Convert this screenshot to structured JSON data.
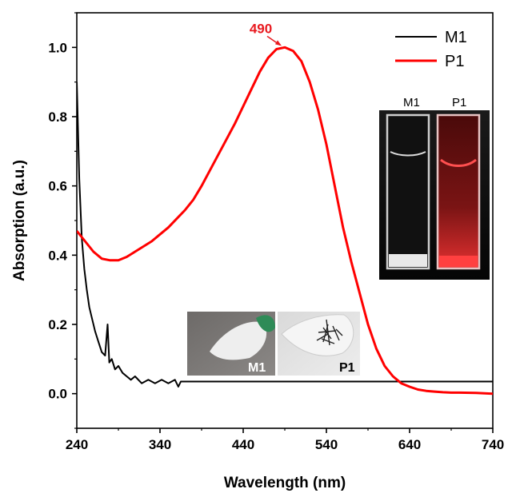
{
  "chart_data": {
    "type": "line",
    "xlabel": "Wavelength (nm)",
    "ylabel": "Absorption (a.u.)",
    "xlim": [
      240,
      740
    ],
    "ylim": [
      -0.1,
      1.1
    ],
    "x_ticks": [
      240,
      340,
      440,
      540,
      640,
      740
    ],
    "y_ticks": [
      0.0,
      0.2,
      0.4,
      0.6,
      0.8,
      1.0
    ],
    "legend_position": "top-right",
    "series": [
      {
        "name": "M1",
        "color": "#000000",
        "x": [
          240,
          243,
          246,
          249,
          252,
          255,
          258,
          262,
          266,
          270,
          274,
          277,
          279,
          282,
          286,
          290,
          295,
          300,
          305,
          310,
          318,
          326,
          334,
          342,
          350,
          358,
          362,
          365,
          370,
          400,
          450,
          500,
          550,
          600,
          650,
          700,
          740
        ],
        "y": [
          0.9,
          0.62,
          0.45,
          0.36,
          0.3,
          0.25,
          0.22,
          0.18,
          0.15,
          0.12,
          0.11,
          0.2,
          0.09,
          0.1,
          0.07,
          0.08,
          0.06,
          0.05,
          0.04,
          0.05,
          0.03,
          0.04,
          0.03,
          0.04,
          0.03,
          0.04,
          0.02,
          0.035,
          0.035,
          0.035,
          0.035,
          0.035,
          0.035,
          0.035,
          0.035,
          0.035,
          0.035
        ]
      },
      {
        "name": "P1",
        "color": "#ff0000",
        "x": [
          240,
          250,
          260,
          270,
          280,
          290,
          300,
          310,
          320,
          330,
          340,
          350,
          360,
          370,
          380,
          390,
          400,
          410,
          420,
          430,
          440,
          450,
          460,
          470,
          480,
          490,
          500,
          510,
          520,
          530,
          540,
          550,
          560,
          570,
          580,
          590,
          600,
          610,
          620,
          630,
          640,
          650,
          660,
          670,
          680,
          690,
          700,
          720,
          740
        ],
        "y": [
          0.47,
          0.44,
          0.41,
          0.39,
          0.385,
          0.385,
          0.395,
          0.41,
          0.425,
          0.44,
          0.46,
          0.48,
          0.505,
          0.53,
          0.56,
          0.6,
          0.645,
          0.69,
          0.735,
          0.78,
          0.83,
          0.88,
          0.93,
          0.97,
          0.995,
          1.0,
          0.99,
          0.96,
          0.9,
          0.82,
          0.72,
          0.6,
          0.48,
          0.38,
          0.29,
          0.2,
          0.13,
          0.08,
          0.05,
          0.03,
          0.02,
          0.012,
          0.008,
          0.006,
          0.004,
          0.003,
          0.003,
          0.002,
          0.0
        ]
      }
    ],
    "annotations": [
      {
        "text": "490",
        "x": 490,
        "y": 1.0,
        "color": "#e8191f"
      }
    ]
  },
  "inset_images": {
    "cuvettes": {
      "label_left": "M1",
      "label_right": "P1"
    },
    "photo_m1": {
      "label": "M1"
    },
    "photo_p1": {
      "label": "P1"
    }
  }
}
